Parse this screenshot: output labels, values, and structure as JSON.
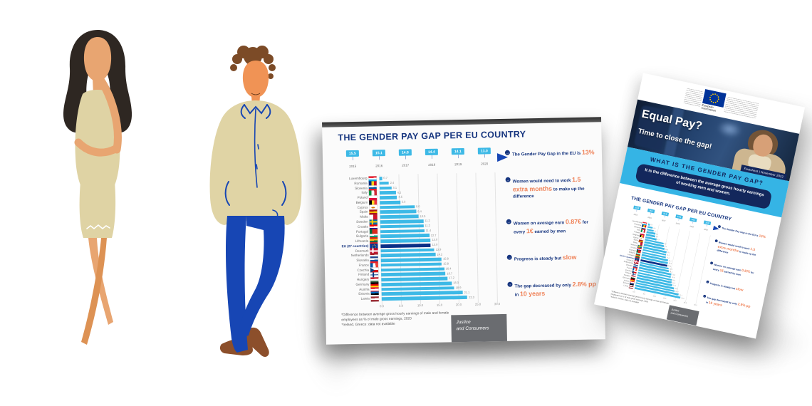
{
  "palette": {
    "navy": "#16357F",
    "cyan": "#3DB9E6",
    "orange": "#EF8258",
    "eu_bar_navy": "#0A2F86",
    "band_cyan": "#35B4E5",
    "justice_gray": "#6A6C70"
  },
  "figures": {
    "woman_alt": "Illustration of a woman thinking with hand on chin",
    "man_alt": "Illustration of a man standing with hands in pockets"
  },
  "factsheet": {
    "footnote_line1": "*Difference between average gross hourly earnings of male and female employees as % of male gross earnings, 2020",
    "footnote_line2": "*Ireland, Greece: data not available",
    "justice_line1": "Justice",
    "justice_line2": "and Consumers",
    "bullets": [
      {
        "segments": [
          {
            "text": "The Gender Pay Gap in the EU is ",
            "highlight": false
          },
          {
            "text": "13%",
            "highlight": true
          }
        ]
      },
      {
        "segments": [
          {
            "text": "Women would need to work ",
            "highlight": false
          },
          {
            "text": "1.5 extra months",
            "highlight": true
          },
          {
            "text": " to make up the difference",
            "highlight": false
          }
        ]
      },
      {
        "segments": [
          {
            "text": "Women on average earn ",
            "highlight": false
          },
          {
            "text": "0.87€",
            "highlight": true
          },
          {
            "text": " for every ",
            "highlight": false
          },
          {
            "text": "1€",
            "highlight": true
          },
          {
            "text": " earned by men",
            "highlight": false
          }
        ]
      },
      {
        "segments": [
          {
            "text": "Progress is steady but ",
            "highlight": false
          },
          {
            "text": "slow",
            "highlight": true
          }
        ]
      },
      {
        "segments": [
          {
            "text": "The gap decreased by only ",
            "highlight": false
          },
          {
            "text": "2.8% pp",
            "highlight": true
          },
          {
            "text": " in ",
            "highlight": false
          },
          {
            "text": "10 years",
            "highlight": true
          }
        ]
      }
    ]
  },
  "flyer": {
    "logo_line1": "European",
    "logo_line2": "Commission",
    "headline": "Equal Pay?",
    "subheadline": "Time to close the gap!",
    "badge": "Factsheet | November 2022",
    "band_title": "WHAT IS THE GENDER PAY GAP?",
    "band_definition": "It is the difference between the average gross hourly earnings of working men and women."
  },
  "chart_data": {
    "type": "bar",
    "orientation": "horizontal",
    "title": "THE GENDER PAY GAP PER EU COUNTRY",
    "value_unit": "% difference in gross hourly earnings, 2020",
    "xlim": [
      0,
      30
    ],
    "x_ticks": [
      "0.0",
      "5.0",
      "10.0",
      "15.0",
      "20.0",
      "25.0",
      "30.0"
    ],
    "gridlines": true,
    "highlight_category": "EU (27 countries)",
    "timeline": {
      "years": [
        "2015",
        "2016",
        "2017",
        "2018",
        "2019",
        "2020"
      ],
      "values": [
        15.5,
        15.1,
        14.8,
        14.4,
        14.1,
        13.0
      ]
    },
    "countries": [
      {
        "name": "Luxembourg",
        "value": 0.7,
        "flag": {
          "type": "h",
          "colors": [
            "#ED2939",
            "#FFFFFF",
            "#00A1DE"
          ]
        }
      },
      {
        "name": "Romania",
        "value": 2.4,
        "flag": {
          "type": "v",
          "colors": [
            "#002B7F",
            "#FCD116",
            "#CE1126"
          ]
        }
      },
      {
        "name": "Slovenia",
        "value": 3.1,
        "flag": {
          "type": "h",
          "colors": [
            "#FFFFFF",
            "#005DA4",
            "#ED1C24"
          ]
        }
      },
      {
        "name": "Italy",
        "value": 4.2,
        "flag": {
          "type": "v",
          "colors": [
            "#009246",
            "#FFFFFF",
            "#CE2B37"
          ]
        }
      },
      {
        "name": "Poland",
        "value": 4.5,
        "flag": {
          "type": "h",
          "colors": [
            "#FFFFFF",
            "#DC143C"
          ]
        }
      },
      {
        "name": "Belgium",
        "value": 5.3,
        "flag": {
          "type": "v",
          "colors": [
            "#000000",
            "#FDDA24",
            "#EF3340"
          ]
        }
      },
      {
        "name": "Cyprus",
        "value": 9.0,
        "flag": {
          "type": "cyprus"
        }
      },
      {
        "name": "Spain",
        "value": 9.4,
        "flag": {
          "type": "h",
          "colors": [
            "#AA151B",
            "#F1BF00",
            "#AA151B"
          ]
        }
      },
      {
        "name": "Malta",
        "value": 10.0,
        "flag": {
          "type": "v",
          "colors": [
            "#FFFFFF",
            "#CF142B"
          ]
        }
      },
      {
        "name": "Sweden",
        "value": 11.2,
        "flag": {
          "type": "cross",
          "bg": "#006AA7",
          "cross": "#FECC02"
        }
      },
      {
        "name": "Croatia",
        "value": 11.2,
        "flag": {
          "type": "h",
          "colors": [
            "#FF0000",
            "#FFFFFF",
            "#171796"
          ]
        }
      },
      {
        "name": "Portugal",
        "value": 11.4,
        "flag": {
          "type": "v",
          "colors": [
            "#046A38",
            "#DA291C",
            "#DA291C"
          ]
        }
      },
      {
        "name": "Bulgaria",
        "value": 12.7,
        "flag": {
          "type": "h",
          "colors": [
            "#FFFFFF",
            "#00966E",
            "#D62612"
          ]
        }
      },
      {
        "name": "Lithuania",
        "value": 13.0,
        "flag": {
          "type": "h",
          "colors": [
            "#FDB913",
            "#006A44",
            "#C1272D"
          ]
        }
      },
      {
        "name": "EU (27 countries)",
        "value": 13.0,
        "flag": {
          "type": "eu"
        },
        "highlight": true
      },
      {
        "name": "Denmark",
        "value": 13.9,
        "flag": {
          "type": "cross",
          "bg": "#C8102E",
          "cross": "#FFFFFF"
        }
      },
      {
        "name": "Netherlands",
        "value": 14.2,
        "flag": {
          "type": "h",
          "colors": [
            "#AE1C28",
            "#FFFFFF",
            "#21468B"
          ]
        }
      },
      {
        "name": "Slovakia",
        "value": 15.8,
        "flag": {
          "type": "h",
          "colors": [
            "#FFFFFF",
            "#0B4EA2",
            "#EE1C25"
          ]
        }
      },
      {
        "name": "France",
        "value": 15.8,
        "flag": {
          "type": "v",
          "colors": [
            "#0055A4",
            "#FFFFFF",
            "#EF4135"
          ]
        }
      },
      {
        "name": "Czechia",
        "value": 16.4,
        "flag": {
          "type": "czech"
        }
      },
      {
        "name": "Finland",
        "value": 16.7,
        "flag": {
          "type": "cross",
          "bg": "#FFFFFF",
          "cross": "#003580"
        }
      },
      {
        "name": "Hungary",
        "value": 17.2,
        "flag": {
          "type": "h",
          "colors": [
            "#CE2939",
            "#FFFFFF",
            "#477050"
          ]
        }
      },
      {
        "name": "Germany",
        "value": 18.3,
        "flag": {
          "type": "h",
          "colors": [
            "#000000",
            "#DD0000",
            "#FFCE00"
          ]
        }
      },
      {
        "name": "Austria",
        "value": 18.9,
        "flag": {
          "type": "h",
          "colors": [
            "#ED2939",
            "#FFFFFF",
            "#ED2939"
          ]
        }
      },
      {
        "name": "Estonia",
        "value": 21.1,
        "flag": {
          "type": "h",
          "colors": [
            "#0072CE",
            "#000000",
            "#FFFFFF"
          ]
        }
      },
      {
        "name": "Latvia",
        "value": 22.3,
        "flag": {
          "type": "h",
          "colors": [
            "#9E3039",
            "#FFFFFF",
            "#9E3039"
          ]
        }
      }
    ]
  }
}
